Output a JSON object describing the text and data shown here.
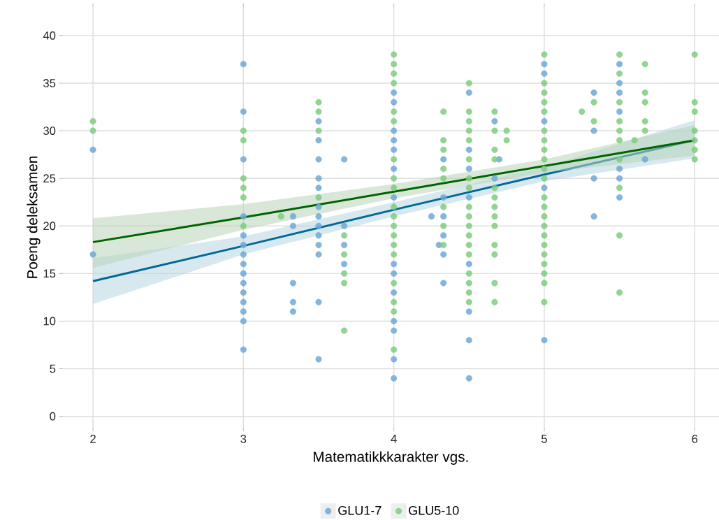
{
  "chart_data": {
    "type": "scatter",
    "xlabel": "Matematikkkarakter vgs.",
    "ylabel": "Poeng deleksamen",
    "xlim": [
      1.8,
      6.16
    ],
    "ylim": [
      -1.2,
      43
    ],
    "xticks": [
      2,
      3,
      4,
      5,
      6
    ],
    "yticks": [
      0,
      5,
      10,
      15,
      20,
      25,
      30,
      35,
      40
    ],
    "grid": true,
    "legend": "bottom",
    "series": [
      {
        "name": "GLU1-7",
        "marker": "circle",
        "color": "#6fa8d6",
        "x": [
          2,
          2,
          3,
          3,
          3,
          3,
          3,
          3,
          3,
          3,
          3,
          3,
          3,
          3,
          3,
          3,
          3,
          3.33,
          3.33,
          3.33,
          3.33,
          3.33,
          3.5,
          3.5,
          3.5,
          3.5,
          3.5,
          3.5,
          3.5,
          3.5,
          3.5,
          3.5,
          3.5,
          3.5,
          3.5,
          3.67,
          3.67,
          3.67,
          3.67,
          4,
          4,
          4,
          4,
          4,
          4,
          4,
          4,
          4,
          4,
          4,
          4,
          4,
          4,
          4.25,
          4.3,
          4.33,
          4.33,
          4.33,
          4.33,
          4.33,
          4.33,
          4.5,
          4.5,
          4.5,
          4.5,
          4.5,
          4.5,
          4.5,
          4.5,
          4.67,
          4.67,
          4.7,
          5,
          5,
          5,
          5,
          5,
          5.33,
          5.33,
          5.33,
          5.33,
          5.5,
          5.5,
          5.5,
          5.5,
          5.5,
          5.5,
          5.5,
          5.67
        ],
        "values": [
          28,
          17,
          37,
          32,
          27,
          21,
          19,
          18,
          17,
          16,
          15,
          14,
          13,
          12,
          11,
          10,
          7,
          21,
          20,
          14,
          12,
          11,
          31,
          29,
          27,
          25,
          24,
          22,
          21,
          20,
          19,
          18,
          17,
          12,
          6,
          27,
          20,
          18,
          16,
          34,
          33,
          30,
          29,
          28,
          26,
          23,
          16,
          15,
          13,
          10,
          9,
          6,
          4,
          21,
          18,
          27,
          23,
          21,
          19,
          17,
          14,
          34,
          28,
          26,
          23,
          16,
          11,
          8,
          4,
          31,
          25,
          27,
          37,
          36,
          31,
          24,
          8,
          34,
          30,
          25,
          21,
          37,
          35,
          34,
          32,
          26,
          25,
          23,
          27
        ]
      },
      {
        "name": "GLU5-10",
        "marker": "circle",
        "color": "#7fcc7f",
        "x": [
          2,
          2,
          3,
          3,
          3,
          3,
          3,
          3,
          3.25,
          3.5,
          3.5,
          3.5,
          3.5,
          3.67,
          3.67,
          3.67,
          3.67,
          3.67,
          4,
          4,
          4,
          4,
          4,
          4,
          4,
          4,
          4,
          4,
          4,
          4,
          4,
          4,
          4,
          4,
          4,
          4,
          4,
          4.33,
          4.33,
          4.33,
          4.33,
          4.33,
          4.33,
          4.33,
          4.33,
          4.5,
          4.5,
          4.5,
          4.5,
          4.5,
          4.5,
          4.5,
          4.5,
          4.5,
          4.5,
          4.5,
          4.5,
          4.5,
          4.5,
          4.5,
          4.5,
          4.5,
          4.5,
          4.67,
          4.67,
          4.67,
          4.67,
          4.67,
          4.67,
          4.67,
          4.67,
          4.67,
          4.67,
          4.67,
          4.67,
          4.67,
          4.75,
          4.75,
          5,
          5,
          5,
          5,
          5,
          5,
          5,
          5,
          5,
          5,
          5,
          5,
          5,
          5,
          5,
          5,
          5,
          5,
          5,
          5,
          5,
          5,
          5.25,
          5.33,
          5.33,
          5.5,
          5.5,
          5.5,
          5.5,
          5.5,
          5.5,
          5.5,
          5.5,
          5.5,
          5.5,
          5.6,
          5.67,
          5.67,
          5.67,
          5.67,
          5.67,
          6,
          6,
          6,
          6,
          6,
          6,
          6
        ],
        "values": [
          31,
          30,
          30,
          29,
          25,
          24,
          23,
          20,
          21,
          33,
          32,
          30,
          23,
          19,
          17,
          15,
          14,
          9,
          38,
          37,
          36,
          35,
          32,
          31,
          27,
          25,
          24,
          22,
          21,
          20,
          19,
          18,
          17,
          14,
          12,
          11,
          7,
          32,
          29,
          28,
          26,
          25,
          22,
          20,
          18,
          35,
          32,
          31,
          30,
          29,
          27,
          25,
          24,
          22,
          21,
          20,
          19,
          18,
          17,
          15,
          14,
          13,
          12,
          32,
          30,
          28,
          27,
          24,
          23,
          22,
          21,
          20,
          18,
          17,
          14,
          12,
          30,
          29,
          38,
          35,
          34,
          33,
          32,
          30,
          29,
          28,
          27,
          26,
          25,
          23,
          22,
          21,
          20,
          19,
          18,
          17,
          16,
          15,
          14,
          12,
          32,
          33,
          31,
          38,
          36,
          33,
          31,
          30,
          29,
          27,
          24,
          19,
          13,
          29,
          37,
          34,
          33,
          31,
          30,
          38,
          33,
          32,
          30,
          29,
          28,
          27
        ]
      },
      {
        "type": "line",
        "marker": "none",
        "color": "#006994",
        "x": [
          2,
          3,
          4,
          5,
          6
        ],
        "values": [
          14.2,
          17.9,
          21.7,
          25.4,
          29.0
        ],
        "lower": [
          11.8,
          17.0,
          21.0,
          24.7,
          27.1
        ],
        "upper": [
          16.6,
          18.9,
          22.5,
          26.2,
          31.1
        ]
      },
      {
        "type": "line",
        "marker": "none",
        "color": "#006400",
        "x": [
          2,
          3,
          4,
          5,
          6
        ],
        "values": [
          18.3,
          20.9,
          23.6,
          26.3,
          29.0
        ],
        "lower": [
          15.6,
          19.6,
          22.9,
          25.6,
          27.4
        ],
        "upper": [
          20.8,
          22.3,
          24.4,
          27.0,
          30.6
        ]
      }
    ]
  }
}
